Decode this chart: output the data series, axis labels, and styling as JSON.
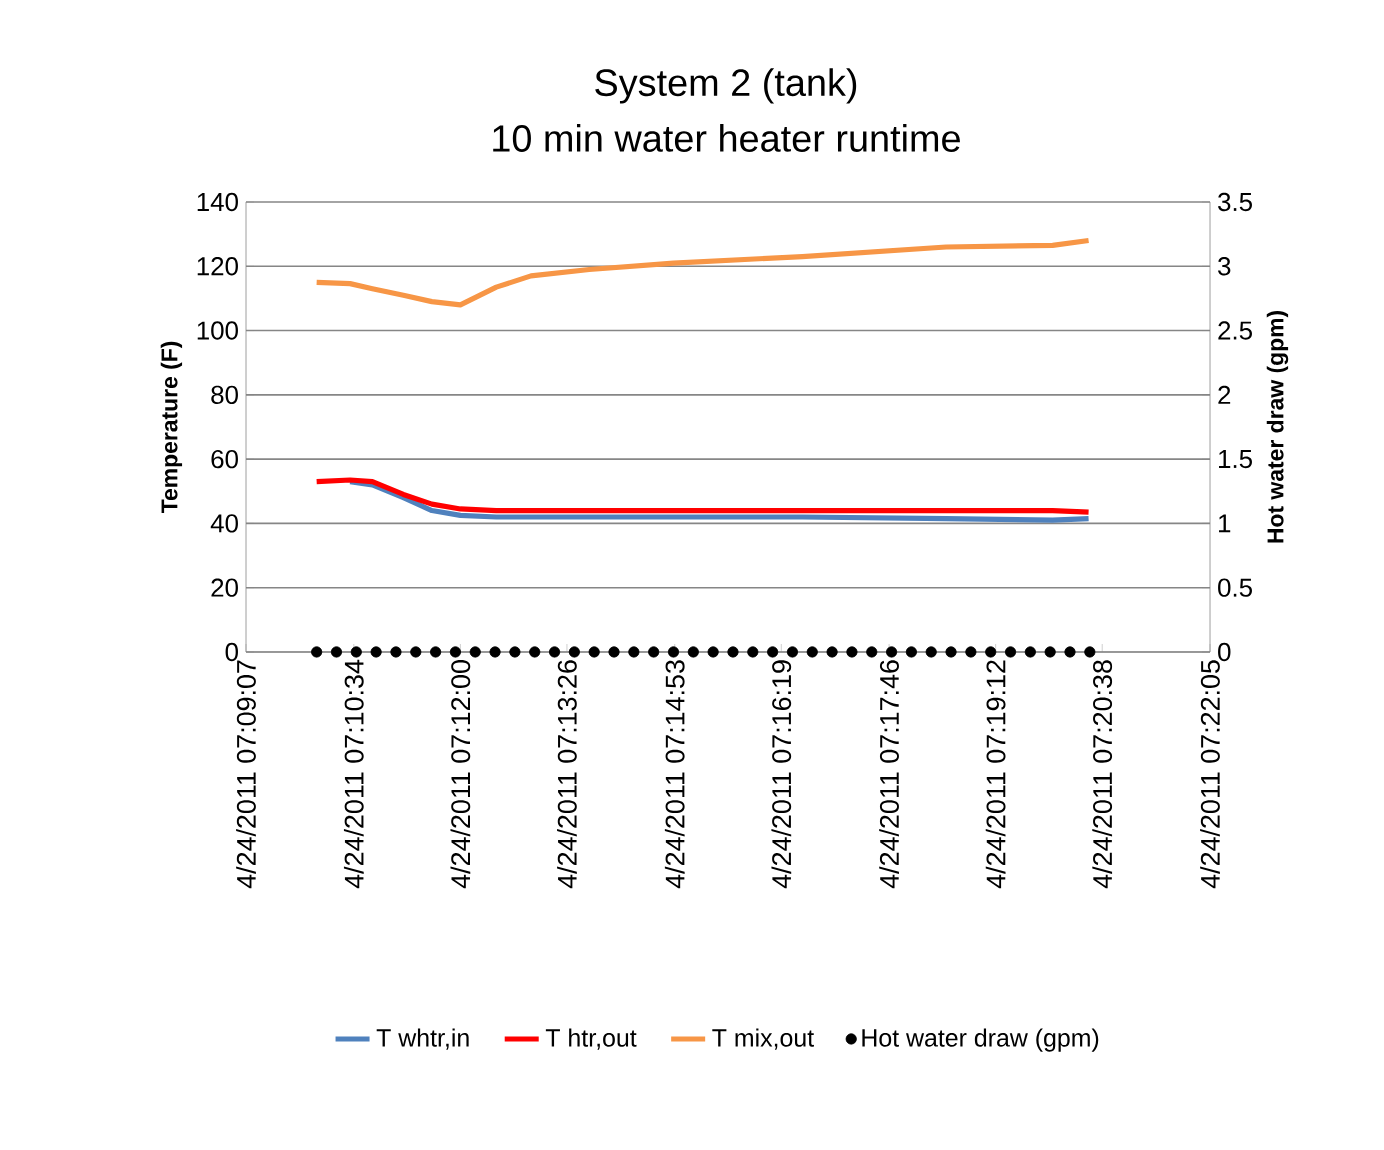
{
  "chart_data": {
    "type": "line",
    "title": "System 2 (tank)",
    "subtitle": "10 min water heater runtime",
    "ylabel": "Temperature (F)",
    "y2label": "Hot water draw (gpm)",
    "xlim": [
      "2011-04-24T07:09:07",
      "2011-04-24T07:22:05"
    ],
    "xticks": [
      {
        "value": "2011-04-24T07:09:07",
        "label": "4/24/2011 07:09:07"
      },
      {
        "value": "2011-04-24T07:10:34",
        "label": "4/24/2011 07:10:34"
      },
      {
        "value": "2011-04-24T07:12:00",
        "label": "4/24/2011 07:12:00"
      },
      {
        "value": "2011-04-24T07:13:26",
        "label": "4/24/2011 07:13:26"
      },
      {
        "value": "2011-04-24T07:14:53",
        "label": "4/24/2011 07:14:53"
      },
      {
        "value": "2011-04-24T07:16:19",
        "label": "4/24/2011 07:16:19"
      },
      {
        "value": "2011-04-24T07:17:46",
        "label": "4/24/2011 07:17:46"
      },
      {
        "value": "2011-04-24T07:19:12",
        "label": "4/24/2011 07:19:12"
      },
      {
        "value": "2011-04-24T07:20:38",
        "label": "4/24/2011 07:20:38"
      },
      {
        "value": "2011-04-24T07:22:05",
        "label": "4/24/2011 07:22:05"
      }
    ],
    "ylim": [
      0,
      140
    ],
    "yticks": [
      0,
      20,
      40,
      60,
      80,
      100,
      120,
      140
    ],
    "y2lim": [
      0,
      3.5
    ],
    "y2ticks": [
      0,
      0.5,
      1,
      1.5,
      2,
      2.5,
      3,
      3.5
    ],
    "grid": "y",
    "legend": "bottom",
    "x": [
      "2011-04-24T07:10:04",
      "2011-04-24T07:10:31",
      "2011-04-24T07:10:49",
      "2011-04-24T07:11:14",
      "2011-04-24T07:11:37",
      "2011-04-24T07:12:00",
      "2011-04-24T07:12:29",
      "2011-04-24T07:12:57",
      "2011-04-24T07:13:44",
      "2011-04-24T07:14:52",
      "2011-04-24T07:16:36",
      "2011-04-24T07:18:32",
      "2011-04-24T07:19:58",
      "2011-04-24T07:20:27"
    ],
    "series": [
      {
        "name": "T whtr,in",
        "color": "#4f81bd",
        "marker": "none",
        "values": [
          null,
          53,
          52,
          48,
          44,
          42.5,
          42,
          42,
          42,
          42,
          42,
          41.5,
          41,
          41.5
        ]
      },
      {
        "name": "T htr,out",
        "color": "#ff0000",
        "marker": "none",
        "values": [
          53,
          53.5,
          53,
          49,
          46,
          44.5,
          44,
          44,
          44,
          44,
          44,
          44,
          44,
          43.5
        ]
      },
      {
        "name": "T mix,out",
        "color": "#f79646",
        "marker": "none",
        "values": [
          115,
          114.6,
          113,
          111,
          109,
          108,
          113.5,
          117,
          119,
          121,
          123,
          126,
          126.5,
          128
        ]
      },
      {
        "name": "Hot water draw (gpm)",
        "type": "scatter",
        "axis": "y2",
        "color": "#000000",
        "marker": "circle",
        "x": [
          "2011-04-24T07:10:04",
          "2011-04-24T07:10:20",
          "2011-04-24T07:10:36",
          "2011-04-24T07:10:52",
          "2011-04-24T07:11:08",
          "2011-04-24T07:11:24",
          "2011-04-24T07:11:40",
          "2011-04-24T07:11:56",
          "2011-04-24T07:12:12",
          "2011-04-24T07:12:28",
          "2011-04-24T07:12:44",
          "2011-04-24T07:13:00",
          "2011-04-24T07:13:16",
          "2011-04-24T07:13:32",
          "2011-04-24T07:13:48",
          "2011-04-24T07:14:04",
          "2011-04-24T07:14:20",
          "2011-04-24T07:14:36",
          "2011-04-24T07:14:52",
          "2011-04-24T07:15:08",
          "2011-04-24T07:15:24",
          "2011-04-24T07:15:40",
          "2011-04-24T07:15:56",
          "2011-04-24T07:16:12",
          "2011-04-24T07:16:28",
          "2011-04-24T07:16:44",
          "2011-04-24T07:17:00",
          "2011-04-24T07:17:16",
          "2011-04-24T07:17:32",
          "2011-04-24T07:17:48",
          "2011-04-24T07:18:04",
          "2011-04-24T07:18:20",
          "2011-04-24T07:18:36",
          "2011-04-24T07:18:52",
          "2011-04-24T07:19:08",
          "2011-04-24T07:19:24",
          "2011-04-24T07:19:40",
          "2011-04-24T07:19:56",
          "2011-04-24T07:20:12",
          "2011-04-24T07:20:28"
        ],
        "values": [
          0,
          0,
          0,
          0,
          0,
          0,
          0,
          0,
          0,
          0,
          0,
          0,
          0,
          0,
          0,
          0,
          0,
          0,
          0,
          0,
          0,
          0,
          0,
          0,
          0,
          0,
          0,
          0,
          0,
          0,
          0,
          0,
          0,
          0,
          0,
          0,
          0,
          0,
          0,
          0
        ]
      }
    ]
  }
}
